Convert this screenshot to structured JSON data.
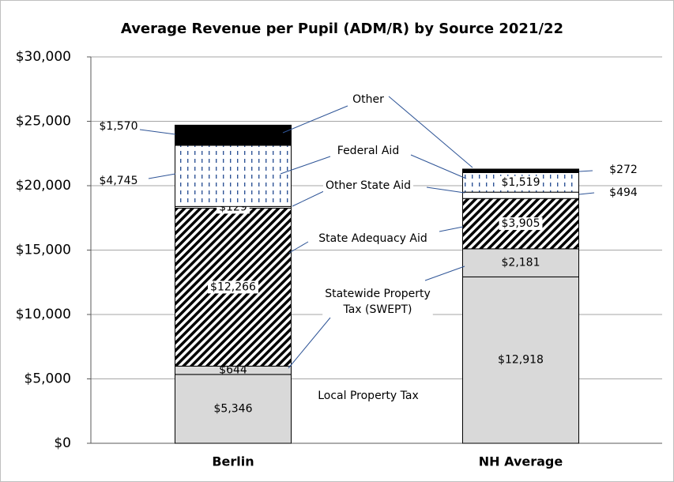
{
  "chart_data": {
    "type": "stacked_bar",
    "title": "Average Revenue per Pupil (ADM/R) by Source 2021/22",
    "categories": [
      "Berlin",
      "NH Average"
    ],
    "series": [
      {
        "name": "Local Property Tax",
        "color": "#d9d9d9",
        "values": [
          5346,
          12918
        ],
        "value_labels": [
          "$5,346",
          "$12,918"
        ]
      },
      {
        "name": "Statewide Property Tax (SWEPT)",
        "color": "#d9d9d9",
        "values": [
          644,
          2181
        ],
        "value_labels": [
          "$644",
          "$2,181"
        ]
      },
      {
        "name": "State Adequacy Aid",
        "color": "#000000",
        "pattern": "diagonal",
        "values": [
          12266,
          3905
        ],
        "value_labels": [
          "$12,266",
          "$3,905"
        ]
      },
      {
        "name": "Other State Aid",
        "color": "#ffffff",
        "values": [
          129,
          494
        ],
        "value_labels": [
          "$129",
          "$494"
        ]
      },
      {
        "name": "Federal Aid",
        "color": "#2f5597",
        "pattern": "dots",
        "values": [
          4745,
          1519
        ],
        "value_labels": [
          "$4,745",
          "$1,519"
        ]
      },
      {
        "name": "Other",
        "color": "#000000",
        "values": [
          1570,
          272
        ],
        "value_labels": [
          "$1,570",
          "$272"
        ]
      }
    ],
    "ylim": [
      0,
      30000
    ],
    "yticks": [
      {
        "value": 0,
        "label": "$0"
      },
      {
        "value": 5000,
        "label": "$5,000"
      },
      {
        "value": 10000,
        "label": "$10,000"
      },
      {
        "value": 15000,
        "label": "$15,000"
      },
      {
        "value": 20000,
        "label": "$20,000"
      },
      {
        "value": 25000,
        "label": "$25,000"
      },
      {
        "value": 30000,
        "label": "$30,000"
      }
    ],
    "grid": true
  }
}
